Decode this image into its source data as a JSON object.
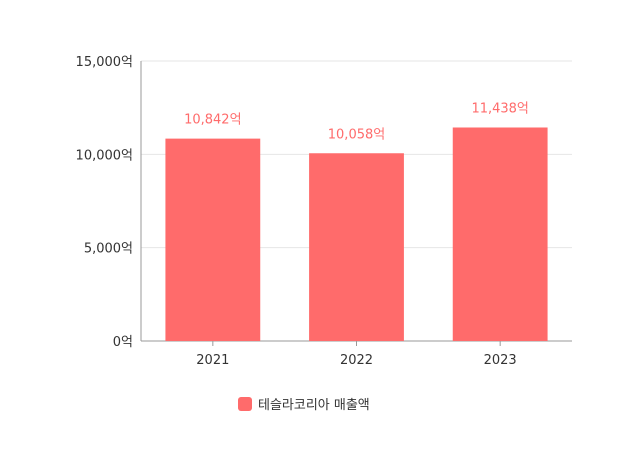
{
  "chart_data": {
    "type": "bar",
    "categories": [
      "2021",
      "2022",
      "2023"
    ],
    "series": [
      {
        "name": "테슬라코리아 매출액",
        "values": [
          10842,
          10058,
          11438
        ],
        "data_labels": [
          "10,842억",
          "10,058억",
          "11,438억"
        ]
      }
    ],
    "title": "",
    "xlabel": "",
    "ylabel": "",
    "ylim": [
      0,
      15000
    ],
    "yticks": [
      0,
      5000,
      10000,
      15000
    ],
    "ytick_labels": [
      "0억",
      "5,000억",
      "10,000억",
      "15,000억"
    ],
    "grid": true,
    "legend_position": "bottom-center",
    "colors": {
      "bar": "#ff6b6b",
      "label": "#ff6b6b",
      "grid": "#e6e6e6",
      "axis": "#999999"
    }
  }
}
